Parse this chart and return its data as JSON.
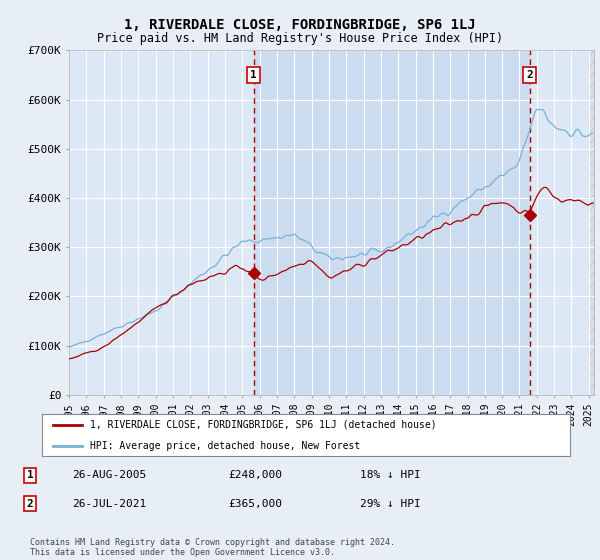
{
  "title": "1, RIVERDALE CLOSE, FORDINGBRIDGE, SP6 1LJ",
  "subtitle": "Price paid vs. HM Land Registry's House Price Index (HPI)",
  "ylim": [
    0,
    700000
  ],
  "yticks": [
    0,
    100000,
    200000,
    300000,
    400000,
    500000,
    600000,
    700000
  ],
  "ytick_labels": [
    "£0",
    "£100K",
    "£200K",
    "£300K",
    "£400K",
    "£500K",
    "£600K",
    "£700K"
  ],
  "background_color": "#e8eef5",
  "plot_bg": "#dce8f5",
  "plot_bg_highlight": "#ccdcf0",
  "grid_color": "#ffffff",
  "hpi_color": "#7ab0d4",
  "price_color": "#aa0000",
  "annotation1": {
    "label": "1",
    "date": "26-AUG-2005",
    "price": "£248,000",
    "pct": "18% ↓ HPI"
  },
  "annotation2": {
    "label": "2",
    "date": "26-JUL-2021",
    "price": "£365,000",
    "pct": "29% ↓ HPI"
  },
  "legend_label1": "1, RIVERDALE CLOSE, FORDINGBRIDGE, SP6 1LJ (detached house)",
  "legend_label2": "HPI: Average price, detached house, New Forest",
  "footnote": "Contains HM Land Registry data © Crown copyright and database right 2024.\nThis data is licensed under the Open Government Licence v3.0.",
  "vline1_x": 2005.65,
  "vline2_x": 2021.58,
  "marker1_y": 248000,
  "marker2_y": 365000,
  "xlim_start": 1995,
  "xlim_end": 2025.3,
  "sale1_x": 2005.65,
  "sale2_x": 2021.58
}
